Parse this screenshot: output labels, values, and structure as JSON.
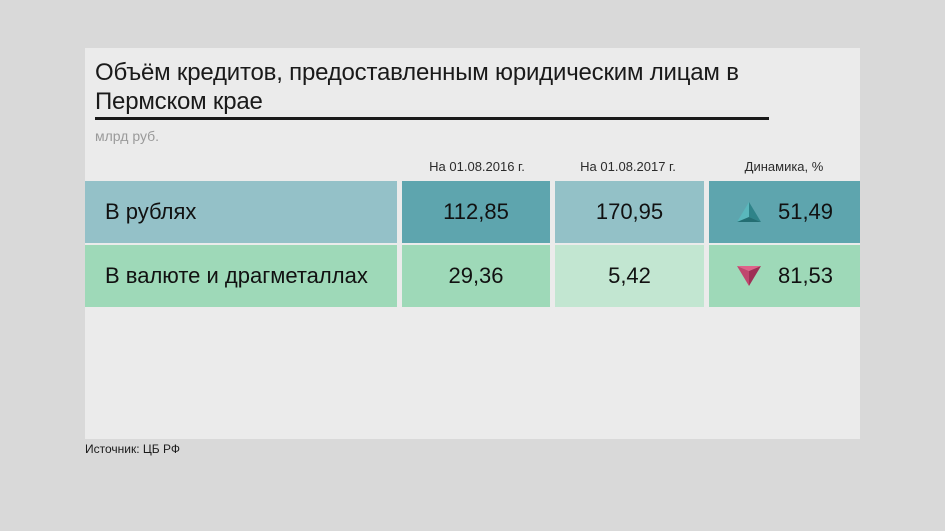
{
  "title": "Объём кредитов, предоставленным юридическим лицам в Пермском крае",
  "unit": "млрд руб.",
  "columns": [
    "На 01.08.2016 г.",
    "На 01.08.2017 г.",
    "Динамика, %"
  ],
  "source": "Источник: ЦБ РФ",
  "colors": {
    "row1_label": "#94c1c8",
    "row1_dark": "#5ea5ae",
    "row1_light": "#93c1c7",
    "row2_label": "#9ed9b8",
    "row2_light": "#c2e6d1",
    "arrow_up": "#3e9aa1",
    "arrow_down": "#c0466e"
  },
  "chart_data": {
    "type": "table",
    "title": "Объём кредитов, предоставленным юридическим лицам в Пермском крае",
    "unit": "млрд руб.",
    "columns": [
      "На 01.08.2016 г.",
      "На 01.08.2017 г.",
      "Динамика, %"
    ],
    "rows": [
      {
        "label": "В рублях",
        "v2016": "112,85",
        "v2017": "170,95",
        "dynamics": "51,49",
        "direction": "up"
      },
      {
        "label": "В валюте и драгметаллах",
        "v2016": "29,36",
        "v2017": "5,42",
        "dynamics": "81,53",
        "direction": "down"
      }
    ]
  }
}
